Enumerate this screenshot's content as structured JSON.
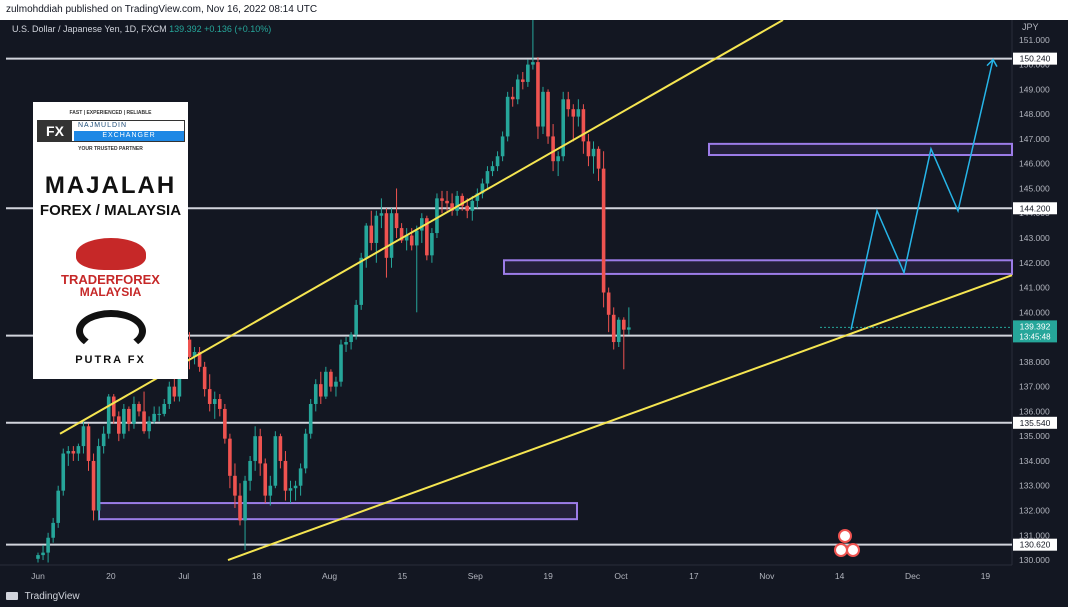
{
  "header": {
    "publisher": "zulmohddiah published on TradingView.com, Nov 16, 2022 08:14 UTC"
  },
  "symbol": {
    "name": "U.S. Dollar / Japanese Yen, 1D, FXCM",
    "price": "139.392",
    "change": "+0.136 (+0.10%)"
  },
  "footer": {
    "brand": "TradingView"
  },
  "logos": {
    "fx_strap": "FAST | EXPERIENCED | RELIABLE",
    "fx_mark": "FX",
    "fx_name1": "NAJMULDIN",
    "fx_name2": "EXCHANGER",
    "fx_tag": "YOUR TRUSTED PARTNER",
    "majalah_line1": "MAJALAH",
    "majalah_line2": "FOREX / MALAYSIA",
    "tiger_line1": "TRADERFOREX",
    "tiger_line2": "MALAYSIA",
    "putra": "PUTRA FX"
  },
  "chart_data": {
    "type": "candlestick",
    "currency_label": "JPY",
    "ylim": [
      129.8,
      151.8
    ],
    "y_ticks": [
      130.0,
      131.0,
      132.0,
      133.0,
      134.0,
      135.0,
      136.0,
      137.0,
      138.0,
      139.0,
      140.0,
      141.0,
      142.0,
      143.0,
      144.0,
      145.0,
      146.0,
      147.0,
      148.0,
      149.0,
      150.0,
      151.0
    ],
    "x_ticks": [
      "Jun",
      "20",
      "Jul",
      "18",
      "Aug",
      "15",
      "Sep",
      "19",
      "Oct",
      "17",
      "Nov",
      "14",
      "Dec",
      "19"
    ],
    "horizontal_levels": [
      {
        "label": "150.240",
        "value": 150.24
      },
      {
        "label": "144.200",
        "value": 144.2
      },
      {
        "label": "139.060",
        "value": 139.06
      },
      {
        "label": "135.540",
        "value": 135.54
      },
      {
        "label": "130.620",
        "value": 130.62
      }
    ],
    "current_price": {
      "label": "139.392",
      "countdown": "13:45:48",
      "value": 139.392
    },
    "zones": [
      {
        "name": "zone-132",
        "start_day": 43,
        "end_day": 170,
        "low": 131.65,
        "high": 132.3
      },
      {
        "name": "zone-142",
        "start_day": 98,
        "end_day": 250,
        "low": 141.55,
        "high": 142.1
      },
      {
        "name": "zone-146",
        "start_day": 144,
        "end_day": 250,
        "low": 146.35,
        "high": 146.8
      }
    ],
    "channel_lines": [
      {
        "from": [
          4,
          135.1
        ],
        "to": [
          165,
          151.8
        ]
      },
      {
        "from": [
          38,
          130.0
        ],
        "to": [
          250,
          141.5
        ]
      }
    ],
    "projection": [
      [
        185,
        139.3
      ],
      [
        194,
        144.1
      ],
      [
        201,
        141.6
      ],
      [
        211,
        146.6
      ],
      [
        218,
        144.1
      ],
      [
        227,
        150.2
      ]
    ],
    "series": [
      {
        "day": 0,
        "o": 130.05,
        "h": 130.3,
        "l": 129.9,
        "c": 130.2
      },
      {
        "day": 1,
        "o": 130.2,
        "h": 130.6,
        "l": 130.0,
        "c": 130.3
      },
      {
        "day": 2,
        "o": 130.3,
        "h": 131.1,
        "l": 129.9,
        "c": 130.9
      },
      {
        "day": 3,
        "o": 130.9,
        "h": 131.7,
        "l": 130.7,
        "c": 131.5
      },
      {
        "day": 4,
        "o": 131.5,
        "h": 133.0,
        "l": 131.3,
        "c": 132.8
      },
      {
        "day": 5,
        "o": 132.8,
        "h": 134.5,
        "l": 132.6,
        "c": 134.3
      },
      {
        "day": 6,
        "o": 134.3,
        "h": 134.6,
        "l": 133.8,
        "c": 134.4
      },
      {
        "day": 7,
        "o": 134.4,
        "h": 134.6,
        "l": 134.0,
        "c": 134.3
      },
      {
        "day": 8,
        "o": 134.3,
        "h": 134.7,
        "l": 134.0,
        "c": 134.6
      },
      {
        "day": 9,
        "o": 134.6,
        "h": 135.6,
        "l": 134.3,
        "c": 135.4
      },
      {
        "day": 10,
        "o": 135.4,
        "h": 135.5,
        "l": 133.6,
        "c": 134.0
      },
      {
        "day": 11,
        "o": 134.0,
        "h": 134.3,
        "l": 131.6,
        "c": 132.0
      },
      {
        "day": 12,
        "o": 132.0,
        "h": 134.9,
        "l": 131.6,
        "c": 134.6
      },
      {
        "day": 13,
        "o": 134.6,
        "h": 135.4,
        "l": 134.3,
        "c": 135.1
      },
      {
        "day": 14,
        "o": 135.1,
        "h": 136.7,
        "l": 134.9,
        "c": 136.6
      },
      {
        "day": 15,
        "o": 136.6,
        "h": 136.7,
        "l": 135.5,
        "c": 135.8
      },
      {
        "day": 16,
        "o": 135.8,
        "h": 136.0,
        "l": 134.8,
        "c": 135.1
      },
      {
        "day": 17,
        "o": 135.1,
        "h": 136.3,
        "l": 134.9,
        "c": 136.1
      },
      {
        "day": 18,
        "o": 136.1,
        "h": 136.2,
        "l": 135.2,
        "c": 135.5
      },
      {
        "day": 19,
        "o": 135.5,
        "h": 136.6,
        "l": 135.3,
        "c": 136.3
      },
      {
        "day": 20,
        "o": 136.3,
        "h": 136.4,
        "l": 135.8,
        "c": 136.0
      },
      {
        "day": 21,
        "o": 136.0,
        "h": 136.8,
        "l": 135.1,
        "c": 135.2
      },
      {
        "day": 22,
        "o": 135.2,
        "h": 135.8,
        "l": 134.9,
        "c": 135.6
      },
      {
        "day": 23,
        "o": 135.6,
        "h": 136.2,
        "l": 135.5,
        "c": 135.9
      },
      {
        "day": 24,
        "o": 135.9,
        "h": 136.2,
        "l": 135.6,
        "c": 135.9
      },
      {
        "day": 25,
        "o": 135.9,
        "h": 136.5,
        "l": 135.8,
        "c": 136.3
      },
      {
        "day": 26,
        "o": 136.3,
        "h": 137.2,
        "l": 136.1,
        "c": 137.0
      },
      {
        "day": 27,
        "o": 137.0,
        "h": 137.5,
        "l": 136.4,
        "c": 136.6
      },
      {
        "day": 28,
        "o": 136.6,
        "h": 138.2,
        "l": 136.4,
        "c": 138.0
      },
      {
        "day": 29,
        "o": 138.0,
        "h": 139.0,
        "l": 137.8,
        "c": 138.9
      },
      {
        "day": 30,
        "o": 138.9,
        "h": 139.2,
        "l": 137.7,
        "c": 138.2
      },
      {
        "day": 31,
        "o": 138.2,
        "h": 138.6,
        "l": 137.9,
        "c": 138.4
      },
      {
        "day": 32,
        "o": 138.4,
        "h": 138.6,
        "l": 137.6,
        "c": 137.8
      },
      {
        "day": 33,
        "o": 137.8,
        "h": 138.0,
        "l": 136.6,
        "c": 136.9
      },
      {
        "day": 34,
        "o": 136.9,
        "h": 137.5,
        "l": 136.0,
        "c": 136.3
      },
      {
        "day": 35,
        "o": 136.3,
        "h": 136.8,
        "l": 135.7,
        "c": 136.5
      },
      {
        "day": 36,
        "o": 136.5,
        "h": 136.7,
        "l": 135.8,
        "c": 136.1
      },
      {
        "day": 37,
        "o": 136.1,
        "h": 136.3,
        "l": 134.7,
        "c": 134.9
      },
      {
        "day": 38,
        "o": 134.9,
        "h": 135.1,
        "l": 132.9,
        "c": 133.4
      },
      {
        "day": 39,
        "o": 133.4,
        "h": 133.9,
        "l": 132.1,
        "c": 132.6
      },
      {
        "day": 40,
        "o": 132.6,
        "h": 133.1,
        "l": 131.4,
        "c": 131.6
      },
      {
        "day": 41,
        "o": 131.6,
        "h": 133.4,
        "l": 130.4,
        "c": 133.2
      },
      {
        "day": 42,
        "o": 133.2,
        "h": 134.2,
        "l": 132.8,
        "c": 134.0
      },
      {
        "day": 43,
        "o": 134.0,
        "h": 135.4,
        "l": 133.6,
        "c": 135.0
      },
      {
        "day": 44,
        "o": 135.0,
        "h": 135.3,
        "l": 133.4,
        "c": 133.9
      },
      {
        "day": 45,
        "o": 133.9,
        "h": 134.1,
        "l": 132.3,
        "c": 132.6
      },
      {
        "day": 46,
        "o": 132.6,
        "h": 133.4,
        "l": 132.2,
        "c": 133.0
      },
      {
        "day": 47,
        "o": 133.0,
        "h": 135.2,
        "l": 132.9,
        "c": 135.0
      },
      {
        "day": 48,
        "o": 135.0,
        "h": 135.1,
        "l": 133.7,
        "c": 134.0
      },
      {
        "day": 49,
        "o": 134.0,
        "h": 134.4,
        "l": 132.4,
        "c": 132.8
      },
      {
        "day": 50,
        "o": 132.8,
        "h": 133.2,
        "l": 132.3,
        "c": 132.9
      },
      {
        "day": 51,
        "o": 132.9,
        "h": 133.2,
        "l": 132.4,
        "c": 133.0
      },
      {
        "day": 52,
        "o": 133.0,
        "h": 133.9,
        "l": 132.6,
        "c": 133.7
      },
      {
        "day": 53,
        "o": 133.7,
        "h": 135.3,
        "l": 133.5,
        "c": 135.1
      },
      {
        "day": 54,
        "o": 135.1,
        "h": 136.5,
        "l": 134.9,
        "c": 136.3
      },
      {
        "day": 55,
        "o": 136.3,
        "h": 137.3,
        "l": 136.0,
        "c": 137.1
      },
      {
        "day": 56,
        "o": 137.1,
        "h": 137.6,
        "l": 136.3,
        "c": 136.6
      },
      {
        "day": 57,
        "o": 136.6,
        "h": 137.8,
        "l": 136.5,
        "c": 137.6
      },
      {
        "day": 58,
        "o": 137.6,
        "h": 137.7,
        "l": 136.8,
        "c": 137.0
      },
      {
        "day": 59,
        "o": 137.0,
        "h": 137.4,
        "l": 136.6,
        "c": 137.2
      },
      {
        "day": 60,
        "o": 137.2,
        "h": 138.9,
        "l": 137.0,
        "c": 138.7
      },
      {
        "day": 61,
        "o": 138.7,
        "h": 139.0,
        "l": 138.4,
        "c": 138.8
      },
      {
        "day": 62,
        "o": 138.8,
        "h": 139.2,
        "l": 138.5,
        "c": 139.1
      },
      {
        "day": 63,
        "o": 139.1,
        "h": 140.5,
        "l": 138.9,
        "c": 140.3
      },
      {
        "day": 64,
        "o": 140.3,
        "h": 142.4,
        "l": 140.1,
        "c": 142.2
      },
      {
        "day": 65,
        "o": 142.2,
        "h": 143.6,
        "l": 141.8,
        "c": 143.5
      },
      {
        "day": 66,
        "o": 143.5,
        "h": 144.1,
        "l": 142.5,
        "c": 142.8
      },
      {
        "day": 67,
        "o": 142.8,
        "h": 144.1,
        "l": 142.0,
        "c": 143.9
      },
      {
        "day": 68,
        "o": 143.9,
        "h": 144.6,
        "l": 143.4,
        "c": 144.0
      },
      {
        "day": 69,
        "o": 144.0,
        "h": 144.2,
        "l": 141.4,
        "c": 142.2
      },
      {
        "day": 70,
        "o": 142.2,
        "h": 144.2,
        "l": 141.8,
        "c": 144.0
      },
      {
        "day": 71,
        "o": 144.0,
        "h": 145.0,
        "l": 143.0,
        "c": 143.4
      },
      {
        "day": 72,
        "o": 143.4,
        "h": 143.6,
        "l": 142.8,
        "c": 142.9
      },
      {
        "day": 73,
        "o": 142.9,
        "h": 143.4,
        "l": 142.5,
        "c": 143.1
      },
      {
        "day": 74,
        "o": 143.1,
        "h": 143.4,
        "l": 142.5,
        "c": 142.7
      },
      {
        "day": 75,
        "o": 142.7,
        "h": 143.5,
        "l": 140.0,
        "c": 143.3
      },
      {
        "day": 76,
        "o": 143.3,
        "h": 144.0,
        "l": 142.8,
        "c": 143.8
      },
      {
        "day": 77,
        "o": 143.8,
        "h": 143.9,
        "l": 142.1,
        "c": 142.3
      },
      {
        "day": 78,
        "o": 142.3,
        "h": 143.4,
        "l": 142.0,
        "c": 143.2
      },
      {
        "day": 79,
        "o": 143.2,
        "h": 144.8,
        "l": 143.0,
        "c": 144.6
      },
      {
        "day": 80,
        "o": 144.6,
        "h": 144.9,
        "l": 144.0,
        "c": 144.5
      },
      {
        "day": 81,
        "o": 144.5,
        "h": 144.9,
        "l": 144.1,
        "c": 144.4
      },
      {
        "day": 82,
        "o": 144.4,
        "h": 144.8,
        "l": 143.9,
        "c": 144.1
      },
      {
        "day": 83,
        "o": 144.1,
        "h": 144.9,
        "l": 143.9,
        "c": 144.7
      },
      {
        "day": 84,
        "o": 144.7,
        "h": 144.8,
        "l": 144.1,
        "c": 144.3
      },
      {
        "day": 85,
        "o": 144.3,
        "h": 144.6,
        "l": 143.8,
        "c": 144.1
      },
      {
        "day": 86,
        "o": 144.1,
        "h": 144.7,
        "l": 143.7,
        "c": 144.5
      },
      {
        "day": 87,
        "o": 144.5,
        "h": 145.0,
        "l": 144.2,
        "c": 144.8
      },
      {
        "day": 88,
        "o": 144.8,
        "h": 145.4,
        "l": 144.6,
        "c": 145.2
      },
      {
        "day": 89,
        "o": 145.2,
        "h": 145.9,
        "l": 145.0,
        "c": 145.7
      },
      {
        "day": 90,
        "o": 145.7,
        "h": 146.1,
        "l": 145.5,
        "c": 145.9
      },
      {
        "day": 91,
        "o": 145.9,
        "h": 146.5,
        "l": 145.7,
        "c": 146.3
      },
      {
        "day": 92,
        "o": 146.3,
        "h": 147.3,
        "l": 146.1,
        "c": 147.1
      },
      {
        "day": 93,
        "o": 147.1,
        "h": 148.9,
        "l": 146.9,
        "c": 148.7
      },
      {
        "day": 94,
        "o": 148.7,
        "h": 149.1,
        "l": 148.3,
        "c": 148.6
      },
      {
        "day": 95,
        "o": 148.6,
        "h": 149.6,
        "l": 148.4,
        "c": 149.4
      },
      {
        "day": 96,
        "o": 149.4,
        "h": 149.7,
        "l": 149.0,
        "c": 149.3
      },
      {
        "day": 97,
        "o": 149.3,
        "h": 150.2,
        "l": 149.1,
        "c": 150.0
      },
      {
        "day": 98,
        "o": 150.0,
        "h": 151.9,
        "l": 149.8,
        "c": 150.1
      },
      {
        "day": 99,
        "o": 150.1,
        "h": 150.3,
        "l": 147.0,
        "c": 147.5
      },
      {
        "day": 100,
        "o": 147.5,
        "h": 149.1,
        "l": 147.2,
        "c": 148.9
      },
      {
        "day": 101,
        "o": 148.9,
        "h": 149.0,
        "l": 146.8,
        "c": 147.1
      },
      {
        "day": 102,
        "o": 147.1,
        "h": 147.6,
        "l": 145.7,
        "c": 146.1
      },
      {
        "day": 103,
        "o": 146.1,
        "h": 146.5,
        "l": 145.5,
        "c": 146.3
      },
      {
        "day": 104,
        "o": 146.3,
        "h": 148.9,
        "l": 146.1,
        "c": 148.6
      },
      {
        "day": 105,
        "o": 148.6,
        "h": 148.9,
        "l": 147.9,
        "c": 148.2
      },
      {
        "day": 106,
        "o": 148.2,
        "h": 148.4,
        "l": 146.9,
        "c": 147.9
      },
      {
        "day": 107,
        "o": 147.9,
        "h": 148.6,
        "l": 147.5,
        "c": 148.2
      },
      {
        "day": 108,
        "o": 148.2,
        "h": 148.4,
        "l": 146.4,
        "c": 146.9
      },
      {
        "day": 109,
        "o": 146.9,
        "h": 147.2,
        "l": 145.9,
        "c": 146.3
      },
      {
        "day": 110,
        "o": 146.3,
        "h": 146.9,
        "l": 145.6,
        "c": 146.6
      },
      {
        "day": 111,
        "o": 146.6,
        "h": 146.7,
        "l": 145.3,
        "c": 145.8
      },
      {
        "day": 112,
        "o": 145.8,
        "h": 146.5,
        "l": 140.2,
        "c": 140.8
      },
      {
        "day": 113,
        "o": 140.8,
        "h": 141.0,
        "l": 139.2,
        "c": 139.9
      },
      {
        "day": 114,
        "o": 139.9,
        "h": 140.2,
        "l": 138.5,
        "c": 138.8
      },
      {
        "day": 115,
        "o": 138.8,
        "h": 139.8,
        "l": 138.6,
        "c": 139.7
      },
      {
        "day": 116,
        "o": 139.7,
        "h": 139.8,
        "l": 137.7,
        "c": 139.3
      },
      {
        "day": 117,
        "o": 139.3,
        "h": 140.2,
        "l": 139.1,
        "c": 139.392
      }
    ]
  }
}
